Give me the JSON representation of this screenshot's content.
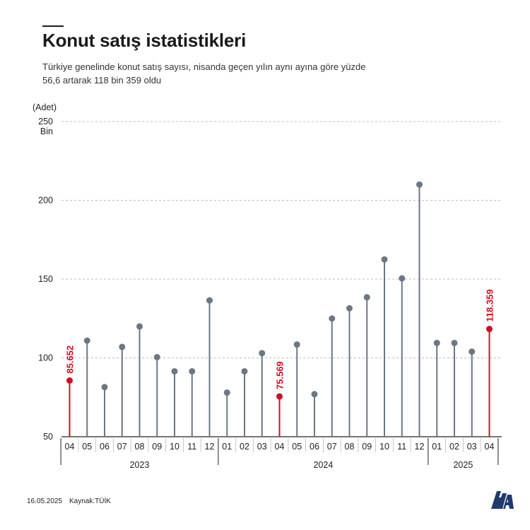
{
  "header": {
    "title": "Konut satış istatistikleri",
    "subtitle": "Türkiye genelinde konut satış sayısı, nisanda geçen yılın aynı ayına göre yüzde 56,6 artarak 118 bin 359 oldu"
  },
  "footer": {
    "date": "16.05.2025",
    "source": "Kaynak:TÜİK"
  },
  "logo": {
    "text": "AA",
    "icon": "aa-logo-icon"
  },
  "colors": {
    "normal": "#6b7785",
    "highlight": "#d0101f",
    "grid": "#bdbdbd",
    "axis": "#222222",
    "logo": "#1f3a6e"
  },
  "chart_data": {
    "type": "lollipop",
    "ylabel": "(Adet)",
    "ylim": [
      50,
      250
    ],
    "yticks": [
      {
        "value": 50,
        "label": "50"
      },
      {
        "value": 100,
        "label": "100"
      },
      {
        "value": 150,
        "label": "150"
      },
      {
        "value": 200,
        "label": "200"
      },
      {
        "value": 250,
        "label": "250"
      }
    ],
    "ytick_unit": "Bin",
    "grid": true,
    "x": [
      "04",
      "05",
      "06",
      "07",
      "08",
      "09",
      "10",
      "11",
      "12",
      "01",
      "02",
      "03",
      "04",
      "05",
      "06",
      "07",
      "08",
      "09",
      "10",
      "11",
      "12",
      "01",
      "02",
      "03",
      "04"
    ],
    "groups": [
      {
        "label": "2023",
        "start": 0,
        "end": 8
      },
      {
        "label": "2024",
        "start": 9,
        "end": 20
      },
      {
        "label": "2025",
        "start": 21,
        "end": 24
      }
    ],
    "values": [
      85.652,
      111,
      81.5,
      107,
      120,
      100.5,
      91.5,
      91.5,
      136.5,
      78,
      91.5,
      103,
      75.569,
      108.5,
      77,
      125,
      131.5,
      138.5,
      162.5,
      150.5,
      210,
      109.5,
      109.5,
      104,
      118.359
    ],
    "highlights": [
      {
        "index": 0,
        "label": "85.652"
      },
      {
        "index": 12,
        "label": "75.569"
      },
      {
        "index": 24,
        "label": "118.359"
      }
    ]
  }
}
